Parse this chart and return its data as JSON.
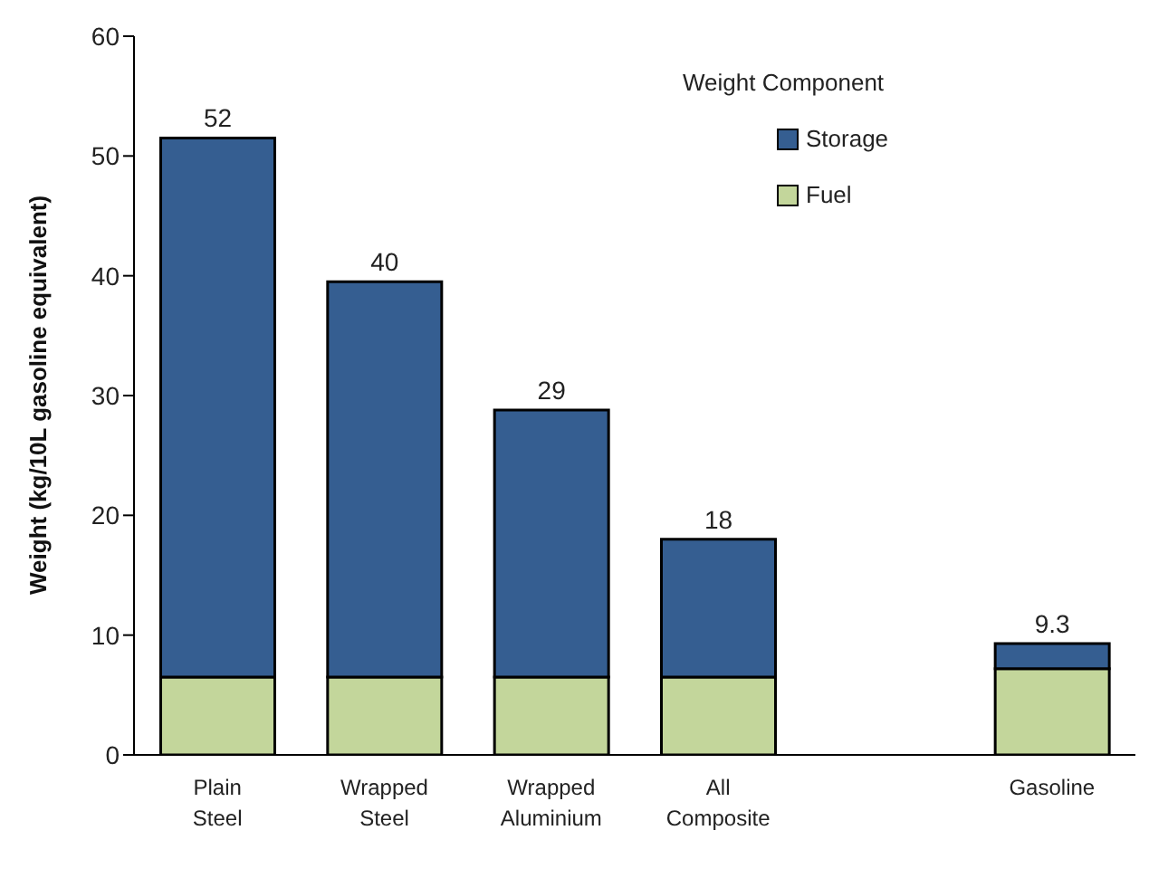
{
  "chart_data": {
    "type": "bar",
    "stacked": true,
    "ylabel": "Weight (kg/10L gasoline equivalent)",
    "legend_title": "Weight Component",
    "legend": "top right",
    "grid": false,
    "categories": [
      "Plain Steel",
      "Wrapped Steel",
      "Wrapped Aluminium",
      "All Composite",
      null,
      "Gasoline"
    ],
    "series": [
      {
        "name": "Fuel",
        "color": "#c3d69b",
        "values": [
          6.5,
          6.5,
          6.5,
          6.5,
          null,
          7.2
        ]
      },
      {
        "name": "Storage",
        "color": "#355e91",
        "values": [
          45,
          33,
          22.3,
          11.5,
          null,
          2.1
        ]
      }
    ],
    "totals": [
      "52",
      "40",
      "29",
      "18",
      null,
      "9.3"
    ],
    "ylim": [
      0,
      60
    ],
    "yticks": [
      0,
      10,
      20,
      30,
      40,
      50,
      60
    ]
  }
}
